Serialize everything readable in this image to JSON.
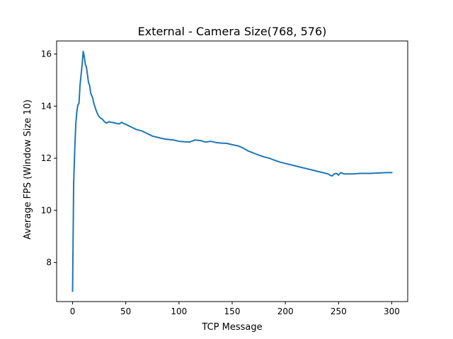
{
  "chart_data": {
    "type": "line",
    "title": "External - Camera Size(768, 576)",
    "xlabel": "TCP Message",
    "ylabel": "Average FPS (Window Size 10)",
    "xlim": [
      -15,
      315
    ],
    "ylim": [
      6.5,
      16.5
    ],
    "xticks": [
      0,
      50,
      100,
      150,
      200,
      250,
      300
    ],
    "yticks": [
      8,
      10,
      12,
      14,
      16
    ],
    "grid": false,
    "legend": "none",
    "series": [
      {
        "color": "#1f77b4",
        "x": [
          0,
          1,
          2,
          3,
          4,
          5,
          6,
          7,
          8,
          9,
          10,
          11,
          12,
          13,
          14,
          15,
          16,
          17,
          18,
          19,
          20,
          22,
          24,
          26,
          28,
          30,
          32,
          34,
          36,
          38,
          40,
          42,
          44,
          46,
          48,
          50,
          55,
          60,
          65,
          70,
          75,
          80,
          85,
          90,
          95,
          100,
          105,
          110,
          115,
          120,
          125,
          130,
          135,
          140,
          145,
          150,
          155,
          160,
          165,
          170,
          175,
          180,
          185,
          190,
          195,
          200,
          205,
          210,
          215,
          220,
          225,
          230,
          235,
          240,
          242,
          244,
          246,
          248,
          250,
          252,
          255,
          260,
          265,
          270,
          275,
          280,
          285,
          290,
          295,
          300
        ],
        "y": [
          6.9,
          11.0,
          12.3,
          13.3,
          13.8,
          14.05,
          14.1,
          14.8,
          15.2,
          15.6,
          16.1,
          15.9,
          15.6,
          15.5,
          15.2,
          14.9,
          14.8,
          14.5,
          14.4,
          14.3,
          14.1,
          13.85,
          13.65,
          13.55,
          13.5,
          13.4,
          13.35,
          13.4,
          13.38,
          13.37,
          13.35,
          13.33,
          13.32,
          13.38,
          13.33,
          13.3,
          13.2,
          13.1,
          13.05,
          12.95,
          12.85,
          12.8,
          12.75,
          12.72,
          12.7,
          12.65,
          12.63,
          12.62,
          12.7,
          12.68,
          12.62,
          12.65,
          12.6,
          12.58,
          12.57,
          12.52,
          12.48,
          12.4,
          12.28,
          12.2,
          12.12,
          12.05,
          12.0,
          11.92,
          11.85,
          11.8,
          11.75,
          11.7,
          11.65,
          11.6,
          11.55,
          11.5,
          11.45,
          11.4,
          11.35,
          11.32,
          11.4,
          11.42,
          11.35,
          11.45,
          11.4,
          11.4,
          11.4,
          11.42,
          11.42,
          11.42,
          11.43,
          11.44,
          11.45,
          11.45
        ]
      }
    ]
  }
}
